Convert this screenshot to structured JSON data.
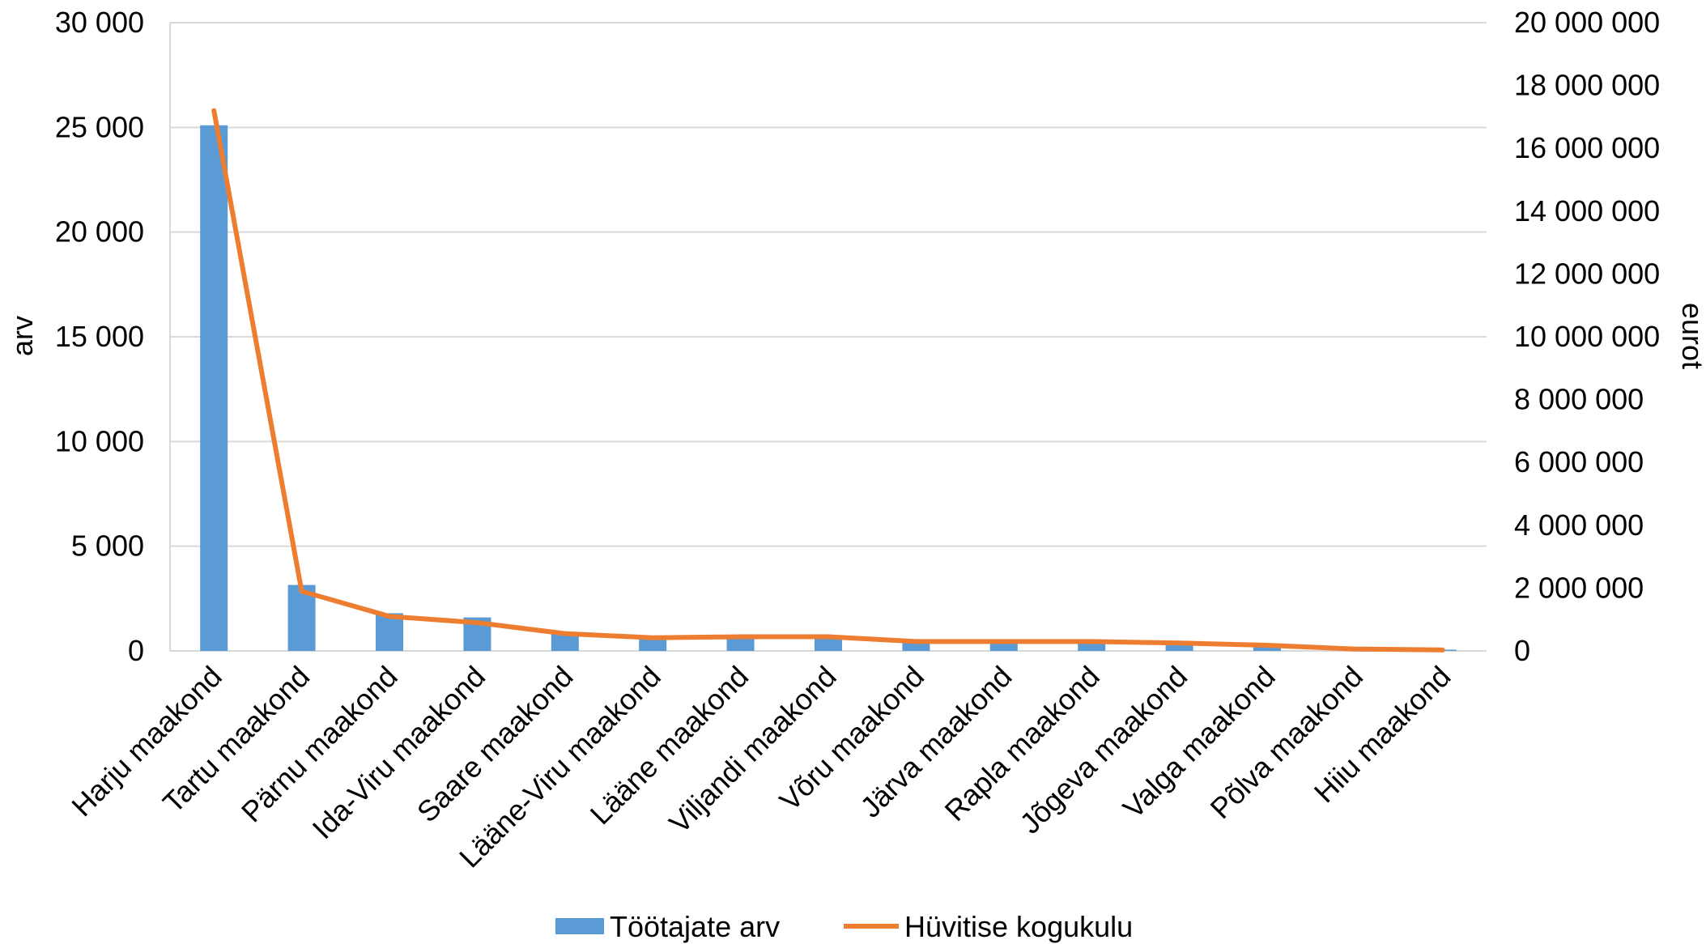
{
  "chart_data": {
    "type": "bar",
    "categories": [
      "Harju maakond",
      "Tartu maakond",
      "Pärnu maakond",
      "Ida-Viru maakond",
      "Saare maakond",
      "Lääne-Viru maakond",
      "Lääne maakond",
      "Viljandi maakond",
      "Võru maakond",
      "Järva maakond",
      "Rapla maakond",
      "Jõgeva maakond",
      "Valga maakond",
      "Põlva maakond",
      "Hiiu maakond"
    ],
    "series": [
      {
        "name": "Töötajate arv",
        "type": "bar",
        "axis": "left",
        "color": "#5b9bd5",
        "values": [
          25100,
          3150,
          1800,
          1600,
          800,
          700,
          700,
          700,
          500,
          500,
          450,
          400,
          300,
          80,
          60
        ]
      },
      {
        "name": "Hüvitise kogukulu",
        "type": "line",
        "axis": "right",
        "color": "#ed7d31",
        "values": [
          17200000,
          1900000,
          1100000,
          900000,
          550000,
          420000,
          450000,
          450000,
          300000,
          300000,
          300000,
          250000,
          180000,
          60000,
          30000
        ]
      }
    ],
    "y_left": {
      "label": "arv",
      "min": 0,
      "max": 30000,
      "step": 5000,
      "tick_labels": [
        "0",
        "5 000",
        "10 000",
        "15 000",
        "20 000",
        "25 000",
        "30 000"
      ]
    },
    "y_right": {
      "label": "eurot",
      "min": 0,
      "max": 20000000,
      "step": 2000000,
      "tick_labels": [
        "0",
        "2 000 000",
        "4 000 000",
        "6 000 000",
        "8 000 000",
        "10 000 000",
        "12 000 000",
        "14 000 000",
        "16 000 000",
        "18 000 000",
        "20 000 000"
      ]
    },
    "grid": true,
    "legend_position": "bottom-center",
    "colors": {
      "bars": "#5b9bd5",
      "line": "#ed7d31",
      "grid": "#d9d9d9"
    }
  }
}
